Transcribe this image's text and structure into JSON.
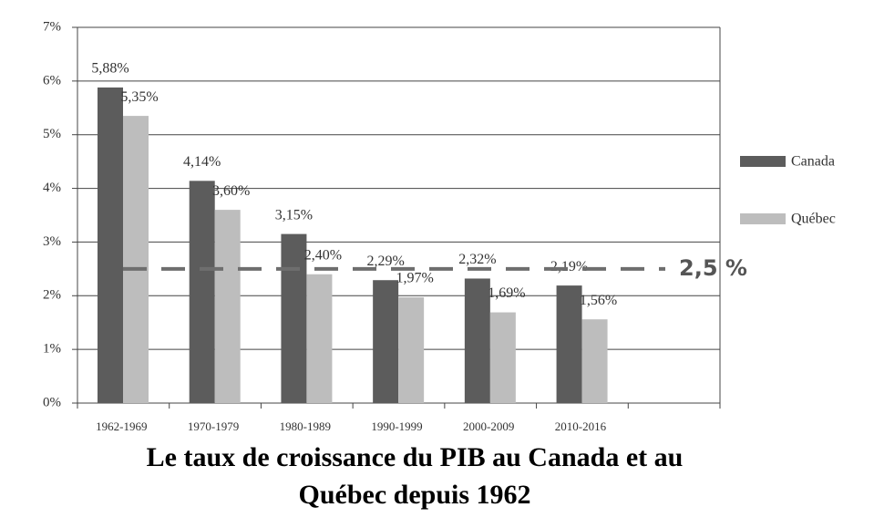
{
  "chart_data": {
    "type": "bar",
    "title": [
      "Le taux de croissance du PIB au Canada et au",
      "Québec depuis 1962"
    ],
    "categories": [
      "1962-1969",
      "1970-1979",
      "1980-1989",
      "1990-1999",
      "2000-2009",
      "2010-2016",
      null
    ],
    "series": [
      {
        "name": "Canada",
        "color": "#5c5c5c",
        "values": [
          5.88,
          4.14,
          3.15,
          2.29,
          2.32,
          2.19,
          null
        ],
        "value_labels": [
          "5,88%",
          "4,14%",
          "3,15%",
          "2,29%",
          "2,32%",
          "2,19%",
          null
        ]
      },
      {
        "name": "Québec",
        "color": "#bdbdbd",
        "values": [
          5.35,
          3.6,
          2.4,
          1.97,
          1.69,
          1.56,
          null
        ],
        "value_labels": [
          "5,35%",
          "3,60%",
          "2,40%",
          "1,97%",
          "1,69%",
          "1,56%",
          null
        ]
      }
    ],
    "ylim": [
      0,
      7
    ],
    "yticks": [
      {
        "value": 0,
        "label": "0%"
      },
      {
        "value": 1,
        "label": "1%"
      },
      {
        "value": 2,
        "label": "2%"
      },
      {
        "value": 3,
        "label": "3%"
      },
      {
        "value": 4,
        "label": "4%"
      },
      {
        "value": 5,
        "label": "5%"
      },
      {
        "value": 6,
        "label": "6%"
      },
      {
        "value": 7,
        "label": "7%"
      }
    ],
    "grid": true,
    "legend": "right",
    "reference_line": {
      "value": 2.5,
      "label": "2,5 %",
      "color": "#6e6e6e"
    }
  }
}
